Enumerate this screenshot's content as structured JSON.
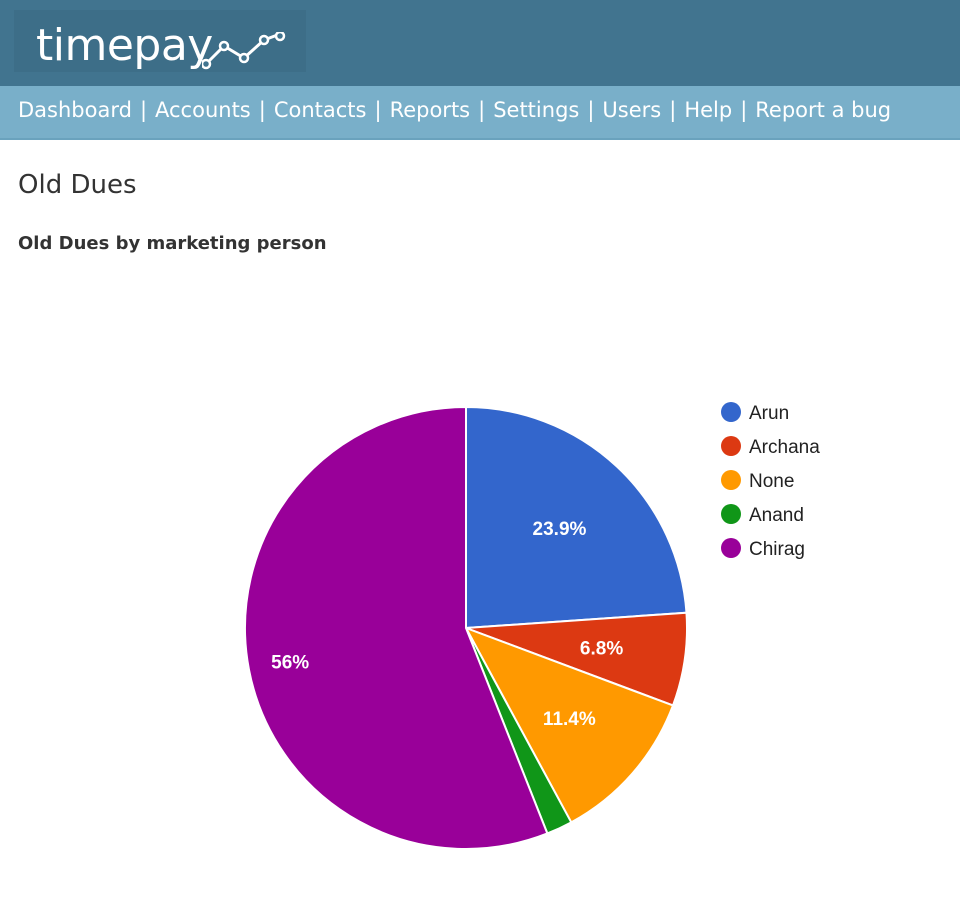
{
  "app": {
    "logo_text": "timepay"
  },
  "nav": {
    "items": [
      "Dashboard",
      "Accounts",
      "Contacts",
      "Reports",
      "Settings",
      "Users",
      "Help",
      "Report a bug"
    ],
    "separator": "|"
  },
  "page": {
    "title": "Old Dues",
    "chart_title": "Old Dues by marketing person"
  },
  "colors": {
    "header": "#41748f",
    "navbar": "#79afc9"
  },
  "chart_data": {
    "type": "pie",
    "title": "Old Dues by marketing person",
    "slices": [
      {
        "label": "Arun",
        "value": 23.9,
        "display": "23.9%",
        "color": "#3366cc"
      },
      {
        "label": "Archana",
        "value": 6.8,
        "display": "6.8%",
        "color": "#dc3912"
      },
      {
        "label": "None",
        "value": 11.4,
        "display": "11.4%",
        "color": "#ff9900"
      },
      {
        "label": "Anand",
        "value": 1.9,
        "display": "",
        "color": "#109618"
      },
      {
        "label": "Chirag",
        "value": 56.0,
        "display": "56%",
        "color": "#990099"
      }
    ],
    "legend_placement": "right"
  }
}
